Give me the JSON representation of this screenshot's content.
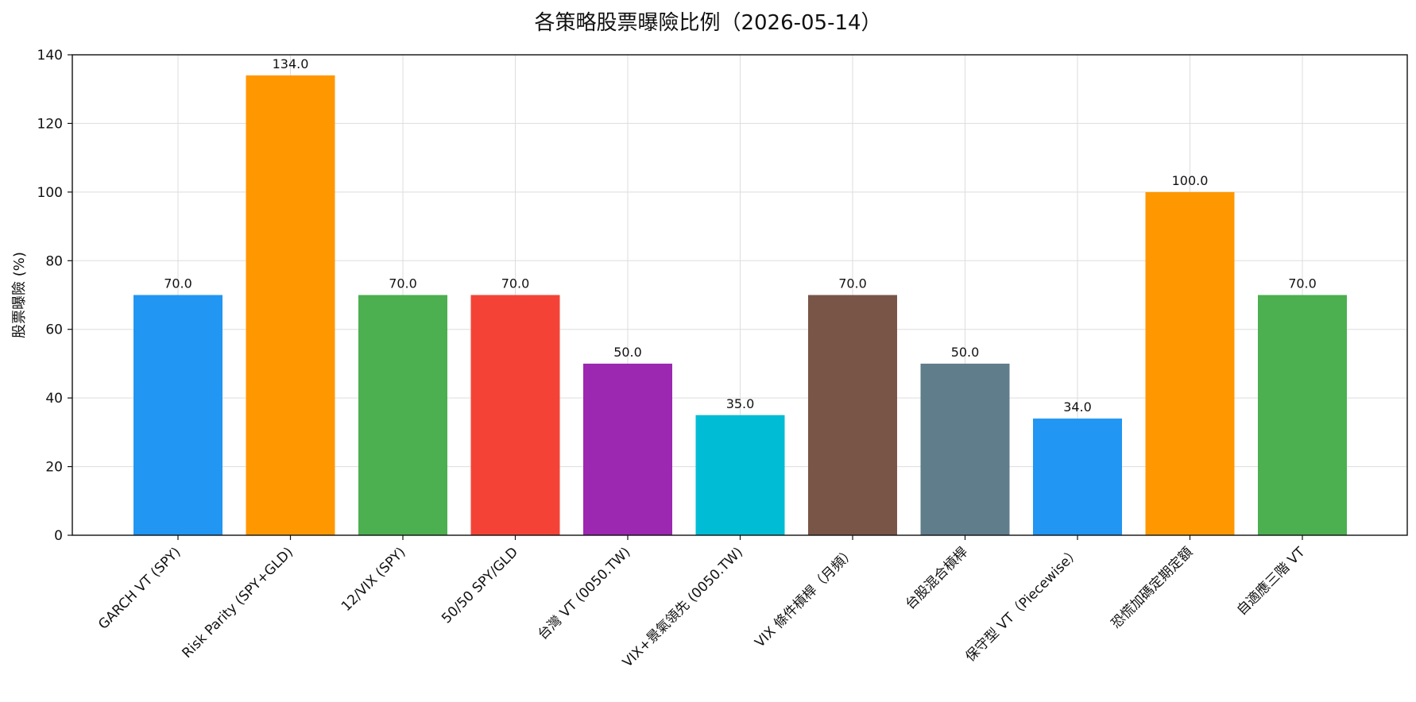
{
  "chart_data": {
    "type": "bar",
    "title": "各策略股票曝險比例（2026-05-14）",
    "xlabel": "",
    "ylabel": "股票曝險 (%)",
    "ylim": [
      0,
      140
    ],
    "yticks": [
      0,
      20,
      40,
      60,
      80,
      100,
      120,
      140
    ],
    "grid": true,
    "categories": [
      "GARCH VT (SPY)",
      "Risk Parity (SPY+GLD)",
      "12/VIX (SPY)",
      "50/50 SPY/GLD",
      "台灣 VT (0050.TW)",
      "VIX+景氣領先 (0050.TW)",
      "VIX 條件槓桿（月頻）",
      "台股混合槓桿",
      "保守型 VT（Piecewise）",
      "恐慌加碼定期定額",
      "自適應三階 VT"
    ],
    "values": [
      70,
      134,
      70,
      70,
      50,
      35,
      70,
      50,
      34,
      100,
      70
    ],
    "data_labels": [
      "70.0",
      "134.0",
      "70.0",
      "70.0",
      "50.0",
      "35.0",
      "70.0",
      "50.0",
      "34.0",
      "100.0",
      "70.0"
    ],
    "colors": [
      "#2196F3",
      "#FF9800",
      "#4CAF50",
      "#F44336",
      "#9C27B0",
      "#00BCD4",
      "#795548",
      "#607D8B",
      "#2196F3",
      "#FF9800",
      "#4CAF50"
    ]
  }
}
